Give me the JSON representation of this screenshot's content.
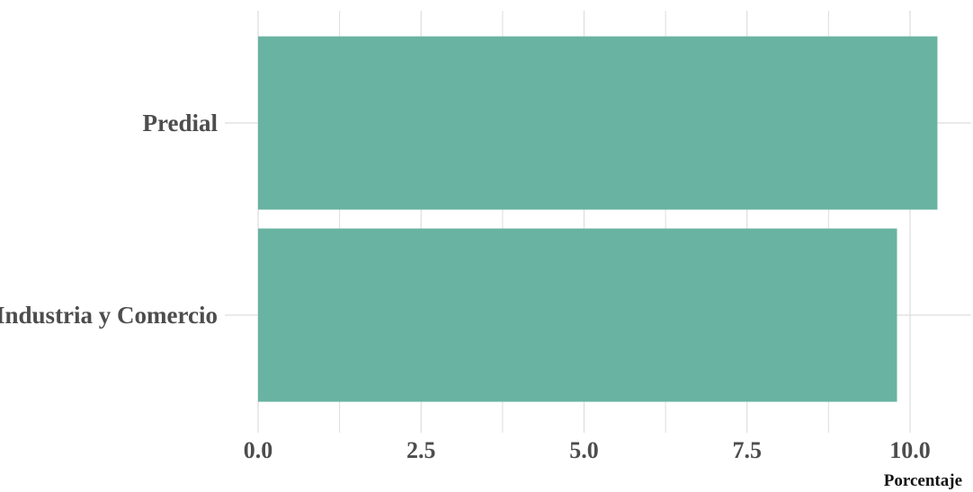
{
  "chart_data": {
    "type": "bar",
    "orientation": "horizontal",
    "categories": [
      "Predial",
      "Industria y Comercio"
    ],
    "values": [
      10.42,
      9.8
    ],
    "xlabel": "Porcentaje",
    "ylabel": "",
    "xlim": [
      0,
      10.75
    ],
    "x_ticks": [
      "0.0",
      "2.5",
      "5.0",
      "7.5",
      "10.0"
    ],
    "x_tick_values": [
      0,
      2.5,
      5,
      7.5,
      10
    ],
    "x_minor_values": [
      1.25,
      3.75,
      6.25,
      8.75
    ],
    "grid": true,
    "legend": "none",
    "colors": {
      "bar": "#69b3a2",
      "grid": "#dddddd"
    }
  }
}
